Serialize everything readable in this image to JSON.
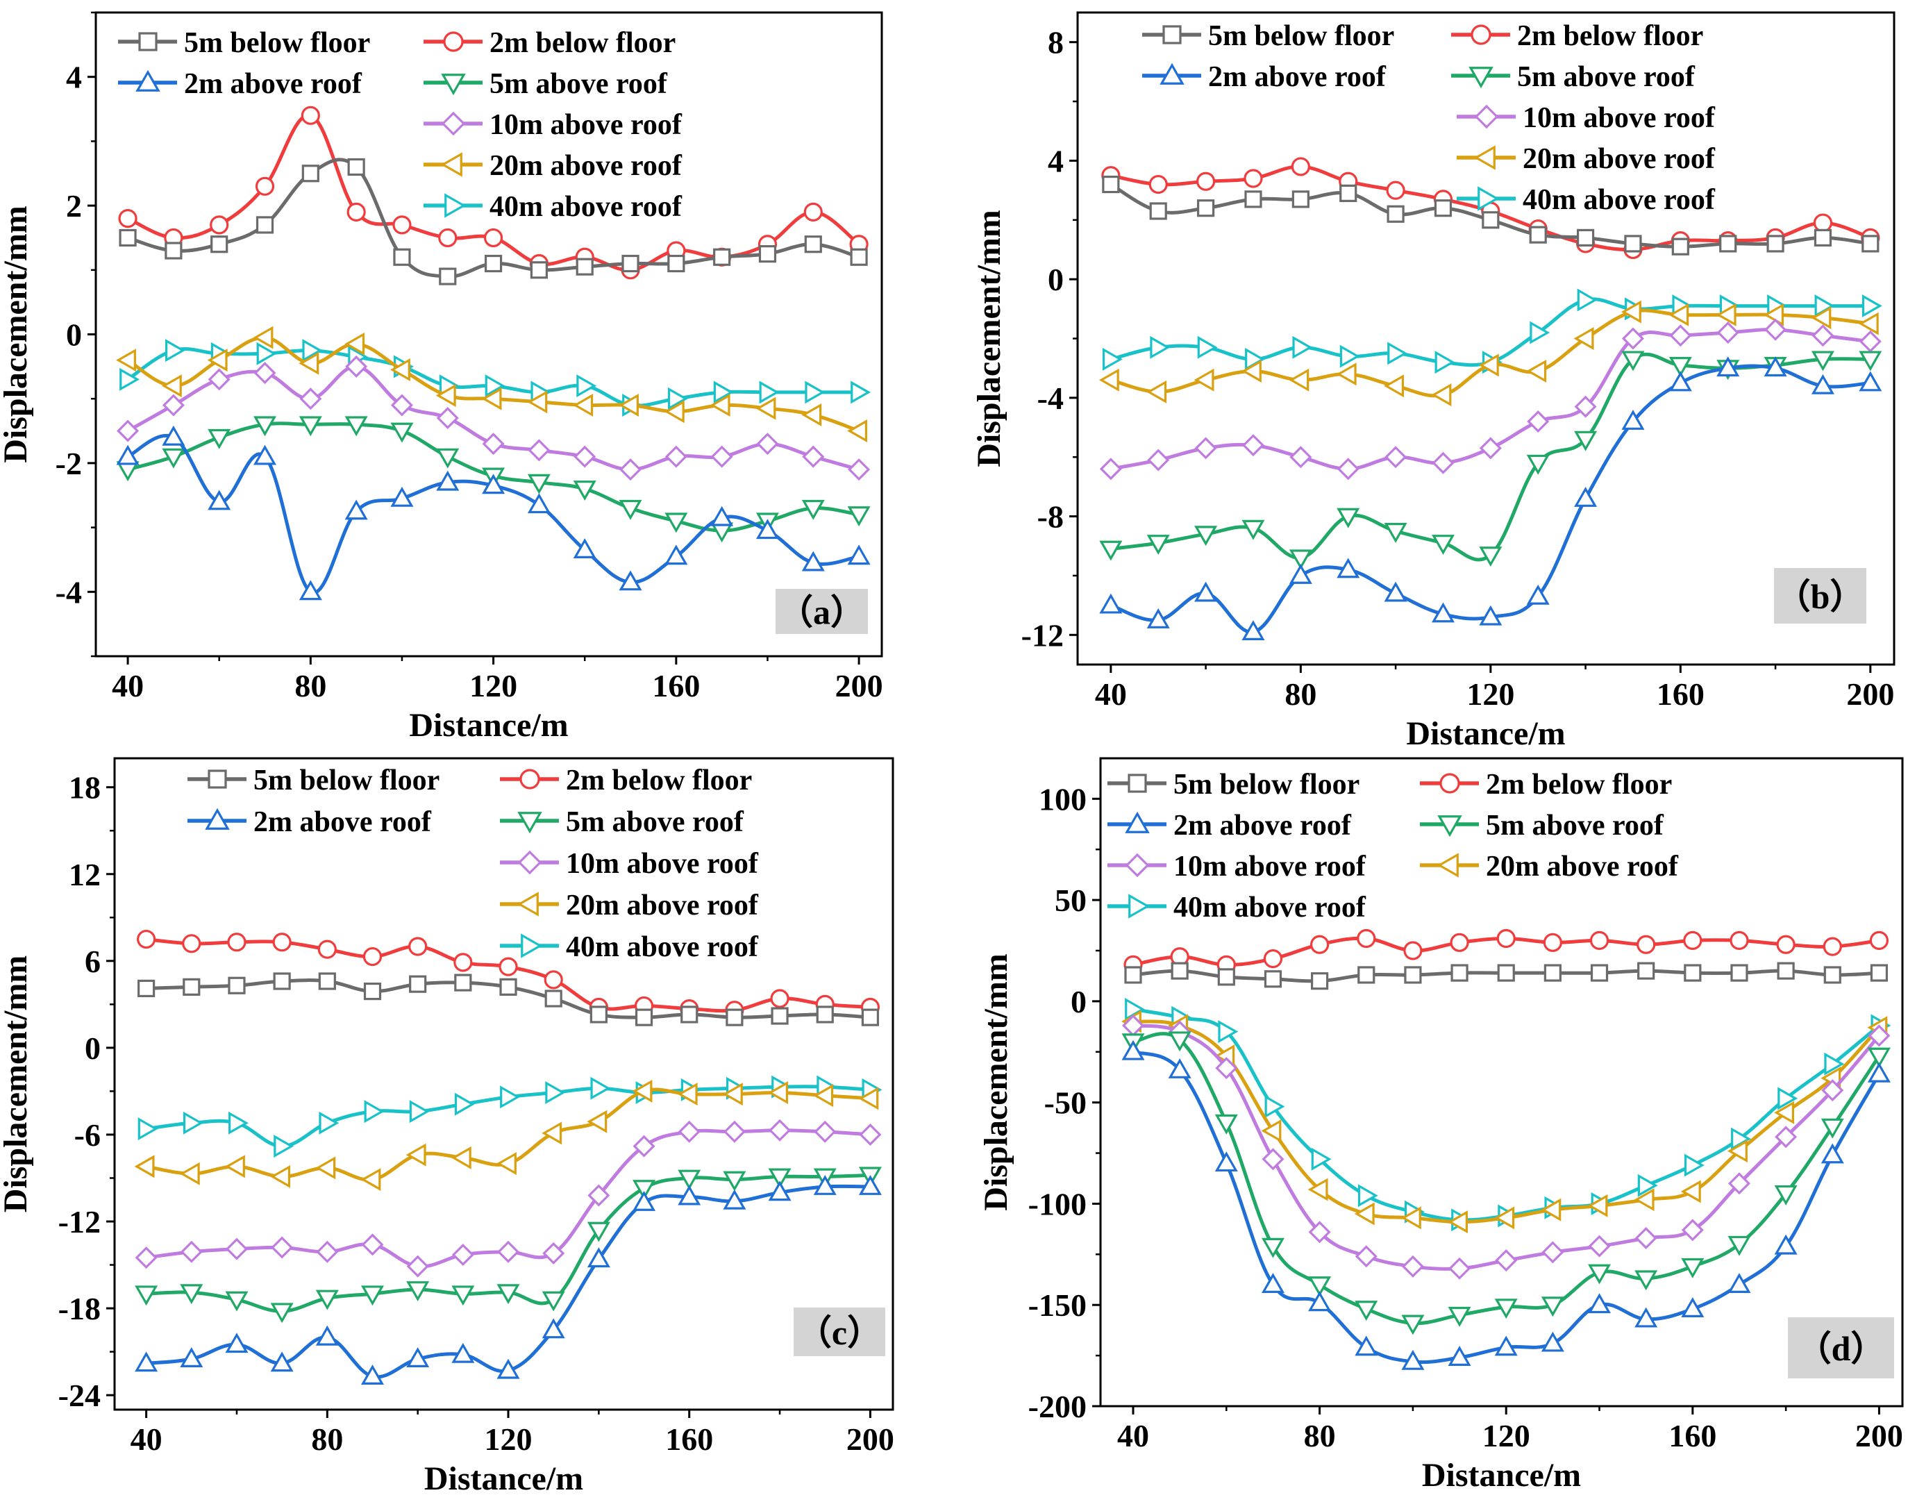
{
  "figure": {
    "series_styles": [
      {
        "color": "#6b6b6b",
        "marker": "square"
      },
      {
        "color": "#f03c3c",
        "marker": "circle"
      },
      {
        "color": "#1f6fd6",
        "marker": "triangle-up"
      },
      {
        "color": "#1fa866",
        "marker": "triangle-down"
      },
      {
        "color": "#c07be0",
        "marker": "diamond"
      },
      {
        "color": "#d9a010",
        "marker": "triangle-left"
      },
      {
        "color": "#19c2c8",
        "marker": "triangle-right"
      }
    ]
  },
  "chart_data": [
    {
      "type": "line",
      "panel_label": "（a）",
      "xlabel": "Distance/m",
      "ylabel": "Displacement/mm",
      "xlim": [
        33,
        205
      ],
      "ylim": [
        -5,
        5
      ],
      "xticks": [
        40,
        80,
        120,
        160,
        200
      ],
      "yticks": [
        -4,
        -2,
        0,
        2,
        4
      ],
      "x": [
        40,
        50,
        60,
        70,
        80,
        90,
        100,
        110,
        120,
        130,
        140,
        150,
        160,
        170,
        180,
        190,
        200
      ],
      "series": [
        {
          "name": "5m below floor",
          "values": [
            1.5,
            1.3,
            1.4,
            1.7,
            2.5,
            2.6,
            1.2,
            0.9,
            1.1,
            1.0,
            1.05,
            1.1,
            1.1,
            1.2,
            1.25,
            1.4,
            1.2
          ]
        },
        {
          "name": "2m below floor",
          "values": [
            1.8,
            1.5,
            1.7,
            2.3,
            3.4,
            1.9,
            1.7,
            1.5,
            1.5,
            1.1,
            1.2,
            1.0,
            1.3,
            1.2,
            1.4,
            1.9,
            1.4
          ]
        },
        {
          "name": "2m above roof",
          "values": [
            -1.9,
            -1.6,
            -2.6,
            -1.9,
            -4.0,
            -2.75,
            -2.55,
            -2.3,
            -2.35,
            -2.65,
            -3.35,
            -3.85,
            -3.45,
            -2.85,
            -3.05,
            -3.55,
            -3.45
          ]
        },
        {
          "name": "5m above roof",
          "values": [
            -2.1,
            -1.9,
            -1.6,
            -1.4,
            -1.4,
            -1.4,
            -1.5,
            -1.9,
            -2.2,
            -2.3,
            -2.4,
            -2.7,
            -2.9,
            -3.05,
            -2.9,
            -2.7,
            -2.8
          ]
        },
        {
          "name": "10m above roof",
          "values": [
            -1.5,
            -1.1,
            -0.7,
            -0.6,
            -1.0,
            -0.5,
            -1.1,
            -1.3,
            -1.7,
            -1.8,
            -1.9,
            -2.1,
            -1.9,
            -1.9,
            -1.7,
            -1.9,
            -2.1
          ]
        },
        {
          "name": "20m above roof",
          "values": [
            -0.4,
            -0.8,
            -0.4,
            -0.05,
            -0.45,
            -0.15,
            -0.55,
            -0.95,
            -1.0,
            -1.05,
            -1.1,
            -1.1,
            -1.2,
            -1.1,
            -1.15,
            -1.25,
            -1.5
          ]
        },
        {
          "name": "40m above roof",
          "values": [
            -0.7,
            -0.25,
            -0.3,
            -0.3,
            -0.25,
            -0.35,
            -0.5,
            -0.8,
            -0.8,
            -0.9,
            -0.8,
            -1.1,
            -1.0,
            -0.9,
            -0.9,
            -0.9,
            -0.9
          ]
        }
      ]
    },
    {
      "type": "line",
      "panel_label": "（b）",
      "xlabel": "Distance/m",
      "ylabel": "Displacement/mm",
      "xlim": [
        33,
        205
      ],
      "ylim": [
        -13,
        9
      ],
      "xticks": [
        40,
        80,
        120,
        160,
        200
      ],
      "yticks": [
        -12,
        -8,
        -4,
        0,
        4,
        8
      ],
      "x": [
        40,
        50,
        60,
        70,
        80,
        90,
        100,
        110,
        120,
        130,
        140,
        150,
        160,
        170,
        180,
        190,
        200
      ],
      "series": [
        {
          "name": "5m below floor",
          "values": [
            3.2,
            2.3,
            2.4,
            2.7,
            2.7,
            2.9,
            2.2,
            2.4,
            2.0,
            1.5,
            1.4,
            1.2,
            1.1,
            1.2,
            1.2,
            1.4,
            1.2
          ]
        },
        {
          "name": "2m below floor",
          "values": [
            3.5,
            3.2,
            3.3,
            3.4,
            3.8,
            3.3,
            3.0,
            2.7,
            2.3,
            1.7,
            1.2,
            1.0,
            1.3,
            1.3,
            1.4,
            1.9,
            1.4
          ]
        },
        {
          "name": "2m above roof",
          "values": [
            -11.0,
            -11.5,
            -10.6,
            -11.9,
            -10.0,
            -9.8,
            -10.6,
            -11.3,
            -11.4,
            -10.7,
            -7.4,
            -4.8,
            -3.5,
            -3.0,
            -3.0,
            -3.6,
            -3.5
          ]
        },
        {
          "name": "5m above roof",
          "values": [
            -9.1,
            -8.9,
            -8.6,
            -8.4,
            -9.4,
            -8.0,
            -8.5,
            -8.9,
            -9.3,
            -6.2,
            -5.4,
            -2.7,
            -2.9,
            -3.0,
            -2.9,
            -2.7,
            -2.7
          ]
        },
        {
          "name": "10m above roof",
          "values": [
            -6.4,
            -6.1,
            -5.7,
            -5.6,
            -6.0,
            -6.4,
            -6.0,
            -6.2,
            -5.7,
            -4.8,
            -4.3,
            -2.0,
            -1.9,
            -1.8,
            -1.7,
            -1.9,
            -2.1
          ]
        },
        {
          "name": "20m above roof",
          "values": [
            -3.4,
            -3.8,
            -3.4,
            -3.1,
            -3.4,
            -3.2,
            -3.6,
            -3.9,
            -2.9,
            -3.1,
            -2.0,
            -1.1,
            -1.2,
            -1.2,
            -1.2,
            -1.3,
            -1.5
          ]
        },
        {
          "name": "40m above roof",
          "values": [
            -2.7,
            -2.3,
            -2.3,
            -2.7,
            -2.3,
            -2.6,
            -2.5,
            -2.8,
            -2.8,
            -1.8,
            -0.7,
            -1.0,
            -0.9,
            -0.9,
            -0.9,
            -0.9,
            -0.9
          ]
        }
      ]
    },
    {
      "type": "line",
      "panel_label": "（c）",
      "xlabel": "Distance/m",
      "ylabel": "Displacement/mm",
      "xlim": [
        33,
        205
      ],
      "ylim": [
        -25,
        20
      ],
      "xticks": [
        40,
        80,
        120,
        160,
        200
      ],
      "yticks": [
        -24,
        -18,
        -12,
        -6,
        0,
        6,
        12,
        18
      ],
      "x": [
        40,
        50,
        60,
        70,
        80,
        90,
        100,
        110,
        120,
        130,
        140,
        150,
        160,
        170,
        180,
        190,
        200
      ],
      "series": [
        {
          "name": "5m below floor",
          "values": [
            4.1,
            4.2,
            4.3,
            4.6,
            4.6,
            3.9,
            4.4,
            4.5,
            4.2,
            3.4,
            2.3,
            2.1,
            2.3,
            2.1,
            2.2,
            2.3,
            2.1
          ]
        },
        {
          "name": "2m below floor",
          "values": [
            7.5,
            7.2,
            7.3,
            7.3,
            6.8,
            6.3,
            7.0,
            5.9,
            5.6,
            4.7,
            2.8,
            2.9,
            2.7,
            2.6,
            3.4,
            3.0,
            2.8
          ]
        },
        {
          "name": "2m above roof",
          "values": [
            -21.8,
            -21.5,
            -20.5,
            -21.8,
            -20.0,
            -22.7,
            -21.5,
            -21.2,
            -22.3,
            -19.5,
            -14.6,
            -10.7,
            -10.3,
            -10.6,
            -10.0,
            -9.6,
            -9.6
          ]
        },
        {
          "name": "5m above roof",
          "values": [
            -17.0,
            -16.9,
            -17.4,
            -18.2,
            -17.3,
            -17.0,
            -16.7,
            -17.0,
            -16.9,
            -17.4,
            -12.6,
            -9.7,
            -9.0,
            -9.1,
            -8.9,
            -8.9,
            -8.8
          ]
        },
        {
          "name": "10m above roof",
          "values": [
            -14.5,
            -14.1,
            -13.9,
            -13.8,
            -14.1,
            -13.6,
            -15.1,
            -14.3,
            -14.1,
            -14.2,
            -10.2,
            -6.8,
            -5.8,
            -5.8,
            -5.7,
            -5.8,
            -6.0
          ]
        },
        {
          "name": "20m above roof",
          "values": [
            -8.2,
            -8.7,
            -8.2,
            -8.9,
            -8.3,
            -9.1,
            -7.4,
            -7.6,
            -8.0,
            -5.9,
            -5.1,
            -3.0,
            -3.2,
            -3.2,
            -3.1,
            -3.3,
            -3.5
          ]
        },
        {
          "name": "40m above roof",
          "values": [
            -5.6,
            -5.2,
            -5.2,
            -6.8,
            -5.2,
            -4.4,
            -4.4,
            -3.9,
            -3.4,
            -3.1,
            -2.8,
            -3.1,
            -2.9,
            -2.8,
            -2.7,
            -2.7,
            -2.9
          ]
        }
      ]
    },
    {
      "type": "line",
      "panel_label": "（d）",
      "xlabel": "Distance/m",
      "ylabel": "Displacement/mm",
      "xlim": [
        33,
        205
      ],
      "ylim": [
        -200,
        120
      ],
      "xticks": [
        40,
        80,
        120,
        160,
        200
      ],
      "yticks": [
        -200,
        -150,
        -100,
        -50,
        0,
        50,
        100
      ],
      "x": [
        40,
        50,
        60,
        70,
        80,
        90,
        100,
        110,
        120,
        130,
        140,
        150,
        160,
        170,
        180,
        190,
        200
      ],
      "series": [
        {
          "name": "5m below floor",
          "values": [
            13,
            15,
            12,
            11,
            10,
            13,
            13,
            14,
            14,
            14,
            14,
            15,
            14,
            14,
            15,
            13,
            14
          ]
        },
        {
          "name": "2m below floor",
          "values": [
            18,
            22,
            18,
            21,
            28,
            31,
            25,
            29,
            31,
            29,
            30,
            28,
            30,
            30,
            28,
            27,
            30
          ]
        },
        {
          "name": "2m above roof",
          "values": [
            -25,
            -34,
            -80,
            -140,
            -149,
            -171,
            -178,
            -176,
            -171,
            -169,
            -150,
            -157,
            -152,
            -140,
            -121,
            -76,
            -36
          ]
        },
        {
          "name": "5m above roof",
          "values": [
            -20,
            -19,
            -60,
            -121,
            -140,
            -152,
            -159,
            -155,
            -151,
            -150,
            -134,
            -137,
            -131,
            -120,
            -95,
            -62,
            -27
          ]
        },
        {
          "name": "10m above roof",
          "values": [
            -12,
            -15,
            -33,
            -78,
            -114,
            -126,
            -131,
            -132,
            -128,
            -124,
            -121,
            -117,
            -113,
            -90,
            -67,
            -44,
            -17
          ]
        },
        {
          "name": "20m above roof",
          "values": [
            -10,
            -12,
            -27,
            -64,
            -93,
            -105,
            -107,
            -109,
            -107,
            -103,
            -101,
            -98,
            -94,
            -74,
            -55,
            -38,
            -13
          ]
        },
        {
          "name": "40m above roof",
          "values": [
            -4,
            -8,
            -15,
            -52,
            -78,
            -96,
            -104,
            -108,
            -106,
            -102,
            -100,
            -91,
            -81,
            -68,
            -48,
            -31,
            -12
          ]
        }
      ]
    }
  ]
}
